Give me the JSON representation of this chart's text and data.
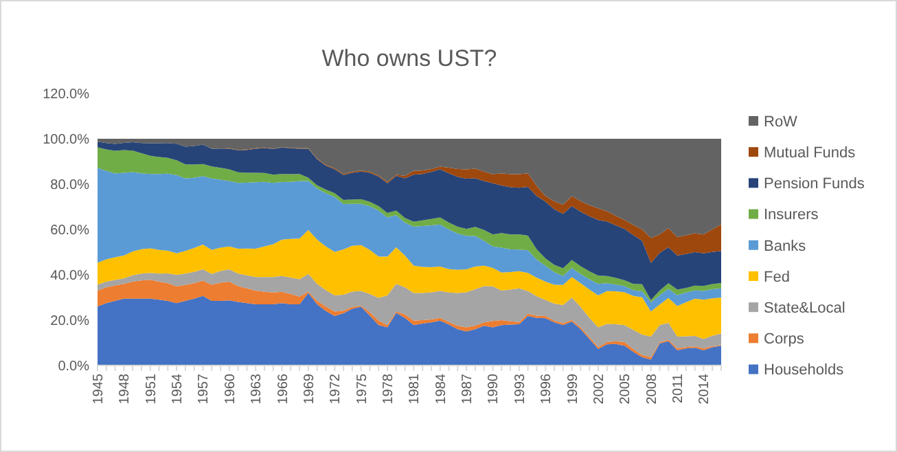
{
  "chart_data": {
    "type": "area",
    "stacked": true,
    "title": "Who owns UST?",
    "legend": "right",
    "categories": [
      "1945",
      null,
      null,
      "1948",
      null,
      null,
      "1951",
      null,
      null,
      "1954",
      null,
      null,
      "1957",
      null,
      null,
      "1960",
      null,
      null,
      "1963",
      null,
      null,
      "1966",
      null,
      null,
      "1969",
      null,
      null,
      "1972",
      null,
      null,
      "1975",
      null,
      null,
      "1978",
      null,
      null,
      "1981",
      null,
      null,
      "1984",
      null,
      null,
      "1987",
      null,
      null,
      "1990",
      null,
      null,
      "1993",
      null,
      null,
      "1996",
      null,
      null,
      "1999",
      null,
      null,
      "2002",
      null,
      null,
      "2005",
      null,
      null,
      "2008",
      null,
      null,
      "2011",
      null,
      null,
      "2014",
      null,
      null
    ],
    "ylim": [
      0,
      120
    ],
    "yticks": [
      {
        "value": 0,
        "label": "0.0%"
      },
      {
        "value": 20,
        "label": "20.0%"
      },
      {
        "value": 40,
        "label": "40.0%"
      },
      {
        "value": 60,
        "label": "60.0%"
      },
      {
        "value": 80,
        "label": "80.0%"
      },
      {
        "value": 100,
        "label": "100.0%"
      },
      {
        "value": 120,
        "label": "120.0%"
      }
    ],
    "series": [
      {
        "name": "Households",
        "color": "#4472c4",
        "values": [
          26,
          27.5,
          28.5,
          29.5,
          29.5,
          29.5,
          29.5,
          29,
          28.5,
          27.5,
          28.5,
          29.5,
          30.7,
          28.5,
          28.5,
          28.7,
          28,
          27.5,
          27,
          27,
          27,
          27.5,
          27,
          27,
          32,
          27,
          24,
          21.8,
          23,
          25,
          25.9,
          22,
          17.8,
          16.8,
          23.2,
          21,
          17.8,
          18.5,
          19,
          19.8,
          18,
          16,
          15,
          16,
          17.5,
          16.8,
          17.8,
          18,
          18.2,
          21.8,
          21,
          20.8,
          19,
          17.8,
          19.3,
          16,
          11.7,
          7.3,
          9.3,
          9.5,
          8.7,
          6,
          3.6,
          2.6,
          9.7,
          10.7,
          6.7,
          7.5,
          7.8,
          6.7,
          8,
          8.7
        ]
      },
      {
        "name": "Corps",
        "color": "#ed7d31",
        "values": [
          7,
          7,
          6.8,
          6.5,
          7.5,
          8,
          8.3,
          8,
          7.8,
          7.4,
          7,
          6.8,
          6.7,
          7.1,
          8,
          8.3,
          7,
          6.5,
          6,
          5.5,
          5.2,
          5,
          4.5,
          3.4,
          0.6,
          1.5,
          2,
          2,
          1.2,
          0.8,
          0.5,
          1.5,
          2,
          1,
          0.6,
          1.5,
          2,
          1.5,
          1.3,
          1.2,
          1.2,
          1.5,
          1.8,
          1.6,
          1.5,
          2.8,
          2.2,
          1.5,
          1,
          1,
          1,
          1,
          0.8,
          0.8,
          0.7,
          0.8,
          0.8,
          0.8,
          1,
          1.2,
          1.6,
          1.2,
          1,
          1,
          0.5,
          0.6,
          0.9,
          0.6,
          0.6,
          0.9,
          0.5,
          0.3
        ]
      },
      {
        "name": "State&Local",
        "color": "#a5a5a5",
        "values": [
          2.7,
          2.5,
          2.4,
          2.4,
          2.8,
          3,
          3,
          3.5,
          4.3,
          5.1,
          5,
          5,
          5,
          4.8,
          5.2,
          5.4,
          5.5,
          5.8,
          6,
          6.5,
          6.8,
          7,
          7.3,
          7.6,
          7.8,
          7.5,
          7.2,
          7.1,
          7,
          6.8,
          6.5,
          8,
          10,
          13.1,
          12.2,
          12,
          12.2,
          12,
          12,
          11.9,
          13,
          14.5,
          15.5,
          16,
          16,
          15.3,
          13,
          14,
          14.8,
          10,
          8.5,
          7.1,
          7.5,
          8.1,
          9.9,
          9,
          8.5,
          8.7,
          8,
          7.5,
          7.5,
          8.5,
          9,
          9.1,
          7.6,
          7.5,
          5.1,
          4.8,
          4.6,
          4.1,
          4.6,
          5.1
        ]
      },
      {
        "name": "Fed",
        "color": "#ffc000",
        "values": [
          9.6,
          9.8,
          10,
          10.1,
          10.5,
          10.8,
          10.9,
          10.5,
          10,
          9.5,
          10,
          10.5,
          10.9,
          10.6,
          10.3,
          10.1,
          11,
          11.8,
          12.5,
          13.5,
          14.5,
          16,
          17,
          18,
          19.4,
          19.5,
          19.3,
          19.2,
          20,
          20.2,
          20.2,
          19.5,
          18.2,
          17.1,
          16.1,
          14,
          12,
          11.5,
          11,
          10.7,
          10.3,
          10.2,
          10.1,
          10,
          9,
          8.1,
          8,
          7.7,
          7.6,
          8,
          8.2,
          8.1,
          8.3,
          8.8,
          9.1,
          10.5,
          12.5,
          14.1,
          14.5,
          14.5,
          14.5,
          15,
          16.5,
          11.1,
          9.1,
          11,
          13.5,
          15,
          16.5,
          17.3,
          16.5,
          15.8
        ]
      },
      {
        "name": "Banks",
        "color": "#5b9bd5",
        "values": [
          41.9,
          39,
          37,
          36.5,
          35,
          33.5,
          32.8,
          33.5,
          34,
          34.5,
          32,
          31,
          30.2,
          31.5,
          30,
          28.9,
          29,
          29,
          29.3,
          28.5,
          27,
          25.4,
          25.2,
          25.4,
          21.6,
          22.5,
          23.5,
          24.2,
          20,
          18.5,
          18.2,
          19.2,
          20.3,
          17.3,
          14.2,
          14.5,
          17.2,
          18,
          18.5,
          18.6,
          17.5,
          16,
          14.8,
          13.5,
          11,
          9.5,
          11,
          10,
          9.5,
          10,
          8,
          7,
          5.5,
          4,
          4,
          4,
          4.5,
          5.1,
          3.5,
          3,
          2.7,
          2.5,
          2.6,
          4.1,
          4.1,
          4,
          4.8,
          4.3,
          3.6,
          3.9,
          4,
          4.1
        ]
      },
      {
        "name": "Insurers",
        "color": "#70ad47",
        "values": [
          9,
          9.5,
          10,
          10,
          9.5,
          8.8,
          8,
          7.5,
          7,
          6.5,
          6.2,
          5.8,
          5.4,
          5.3,
          5.2,
          5.1,
          4.7,
          4.4,
          4.2,
          3.9,
          3.7,
          3.6,
          3.4,
          3.1,
          1.4,
          1.5,
          1.6,
          1.7,
          1.8,
          1.9,
          2,
          2,
          2,
          2,
          2,
          2.1,
          2.2,
          2.5,
          2.8,
          3.1,
          3,
          3,
          3,
          4,
          4.8,
          5.3,
          6.4,
          6.6,
          6.7,
          6.5,
          4.5,
          3.2,
          3.3,
          3.4,
          3.5,
          3.5,
          3.5,
          3.6,
          3.2,
          2.9,
          2.6,
          2.8,
          3.1,
          1,
          2,
          2.5,
          2.5,
          2,
          2.1,
          2.2,
          2.3,
          2.4
        ]
      },
      {
        "name": "Pension Funds",
        "color": "#264478",
        "values": [
          2.5,
          2.8,
          3,
          3.2,
          3.7,
          4.5,
          5.5,
          6,
          6.5,
          7.3,
          7.8,
          8.2,
          8.5,
          7.7,
          8.5,
          9.1,
          9.7,
          10.1,
          10.6,
          11,
          11.3,
          11.6,
          11.4,
          11.1,
          12.8,
          11.5,
          10.5,
          10.5,
          11,
          11.8,
          12.2,
          12.8,
          13,
          13.1,
          15.3,
          17.5,
          20.8,
          20.5,
          20.8,
          21.2,
          21.8,
          22,
          22.2,
          21.5,
          21.6,
          22.6,
          21,
          20.8,
          20.6,
          21.5,
          23.5,
          25.1,
          24.5,
          24,
          23.8,
          24,
          24.3,
          24.6,
          24,
          23.2,
          22.6,
          21.5,
          19.2,
          16.3,
          16.7,
          15.8,
          15,
          15,
          14.8,
          14.4,
          14.2,
          14.1
        ]
      },
      {
        "name": "Mutual Funds",
        "color": "#9e480e",
        "values": [
          0,
          0,
          0,
          0,
          0,
          0,
          0,
          0,
          0,
          0,
          0,
          0,
          0,
          0,
          0,
          0.2,
          0.2,
          0.2,
          0.2,
          0.2,
          0.2,
          0.2,
          0.2,
          0.2,
          0.2,
          0.3,
          0.4,
          0.5,
          0.5,
          0.5,
          0.5,
          0.5,
          0.5,
          0.6,
          0.6,
          1,
          1.7,
          1.5,
          1.3,
          1.2,
          2.5,
          3.5,
          4.1,
          4.2,
          4.1,
          4,
          5.4,
          5.8,
          6,
          6,
          4.5,
          2.4,
          3.5,
          4,
          4.4,
          4.7,
          4.9,
          5.1,
          4.5,
          4.2,
          4,
          4.5,
          5,
          11,
          8.1,
          8.5,
          8.1,
          8.2,
          8.3,
          8.3,
          10,
          11.7
        ]
      },
      {
        "name": "RoW",
        "color": "#636363",
        "values": [
          1.3,
          1.9,
          2.3,
          1.8,
          1.5,
          1.9,
          2,
          2,
          1.9,
          2.2,
          3.5,
          3.2,
          2.6,
          4.5,
          4.3,
          4.2,
          4.9,
          4.7,
          4.2,
          3.9,
          4.3,
          3.7,
          4,
          4.2,
          4.2,
          8.7,
          11.5,
          13,
          15.5,
          14.5,
          14,
          14.5,
          16.2,
          19,
          15.8,
          16.4,
          14.1,
          14,
          13.3,
          12.3,
          12.7,
          13.3,
          13.5,
          13.2,
          14.5,
          15.6,
          15.2,
          15.6,
          15.6,
          15.2,
          20.8,
          25.3,
          27.6,
          29.1,
          25.3,
          27.5,
          29.3,
          30.7,
          32,
          34,
          35.8,
          38,
          40,
          43.8,
          42.2,
          39.4,
          43.4,
          42.6,
          41.7,
          42.2,
          39.9,
          37.8
        ]
      }
    ]
  }
}
